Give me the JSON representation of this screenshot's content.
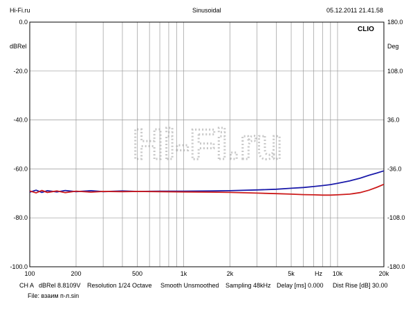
{
  "header": {
    "left": "Hi-Fi.ru",
    "center": "Sinusoidal",
    "right": "05.12.2011 21.41.58"
  },
  "watermark": "Hi-Fi.ru",
  "chart_data": {
    "type": "line",
    "xscale": "log",
    "xlim": [
      100,
      20000
    ],
    "ylim": [
      -100,
      0
    ],
    "y2lim": [
      -180,
      180
    ],
    "ylabel": "dBRel",
    "y2label": "Deg",
    "xunit": "Hz",
    "brand": "CLIO",
    "grid": true,
    "xticks": [
      {
        "v": 100,
        "label": "100"
      },
      {
        "v": 200,
        "label": "200"
      },
      {
        "v": 500,
        "label": "500"
      },
      {
        "v": 1000,
        "label": "1k"
      },
      {
        "v": 2000,
        "label": "2k"
      },
      {
        "v": 5000,
        "label": "5k"
      },
      {
        "v": 10000,
        "label": "10k"
      },
      {
        "v": 20000,
        "label": "20k"
      }
    ],
    "yticks": [
      0,
      -20,
      -40,
      -60,
      -80,
      -100
    ],
    "ytick_labels": [
      "0.0",
      "-20.0",
      "-40.0",
      "-60.0",
      "-80.0",
      "-100.0"
    ],
    "y2ticks": [
      180,
      108,
      36,
      -36,
      -108,
      -180
    ],
    "y2tick_labels": [
      "180.0",
      "108.0",
      "36.0",
      "-36.0",
      "-108.0",
      "-180.0"
    ],
    "series": [
      {
        "color": "#1a1aaa",
        "x": [
          100,
          110,
          120,
          130,
          150,
          170,
          200,
          250,
          300,
          400,
          500,
          700,
          1000,
          1500,
          2000,
          3000,
          4000,
          5000,
          6000,
          7000,
          8000,
          9000,
          10000,
          12000,
          14000,
          16000,
          18000,
          20000
        ],
        "y": [
          -69.5,
          -68.7,
          -69.6,
          -68.9,
          -69.4,
          -68.8,
          -69.3,
          -68.9,
          -69.3,
          -69.0,
          -69.2,
          -69.1,
          -69.1,
          -69.0,
          -68.9,
          -68.6,
          -68.3,
          -67.9,
          -67.6,
          -67.2,
          -66.8,
          -66.4,
          -65.9,
          -64.9,
          -63.8,
          -62.6,
          -61.7,
          -60.8
        ]
      },
      {
        "color": "#cc1a1a",
        "x": [
          100,
          110,
          120,
          130,
          150,
          170,
          200,
          250,
          300,
          400,
          500,
          700,
          1000,
          1500,
          2000,
          3000,
          4000,
          5000,
          6000,
          7000,
          8000,
          9000,
          10000,
          12000,
          14000,
          16000,
          18000,
          20000
        ],
        "y": [
          -69.0,
          -69.8,
          -68.8,
          -69.6,
          -69.0,
          -69.7,
          -69.1,
          -69.5,
          -69.2,
          -69.3,
          -69.2,
          -69.3,
          -69.4,
          -69.5,
          -69.6,
          -69.9,
          -70.1,
          -70.3,
          -70.5,
          -70.6,
          -70.7,
          -70.7,
          -70.6,
          -70.3,
          -69.7,
          -68.7,
          -67.5,
          -66.3
        ]
      }
    ]
  },
  "footer": {
    "channel": "CH A",
    "ref": "dBRel 8.8109V",
    "resolution": "Resolution 1/24 Octave",
    "smooth": "Smooth Unsmoothed",
    "sampling": "Sampling 48kHz",
    "delay": "Delay [ms] 0.000",
    "dist": "Dist Rise [dB] 30.00",
    "file": "File: взаим п-л.sin"
  }
}
